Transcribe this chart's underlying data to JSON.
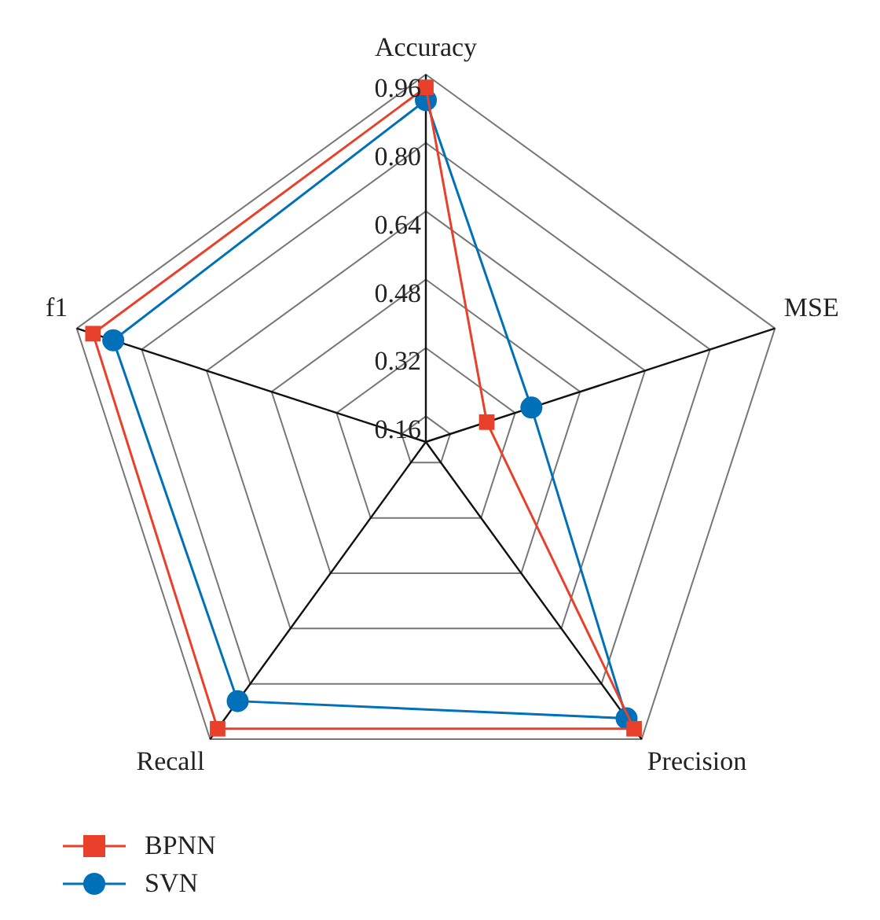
{
  "chart_data": {
    "type": "radar",
    "categories": [
      "Accuracy",
      "MSE",
      "Precision",
      "Recall",
      "f1"
    ],
    "series": [
      {
        "name": "BPNN",
        "color": "#e8402a",
        "marker": "square",
        "values": [
          0.93,
          0.25,
          0.93,
          0.93,
          0.92
        ]
      },
      {
        "name": "SVN",
        "color": "#0070b8",
        "marker": "circle",
        "values": [
          0.9,
          0.36,
          0.9,
          0.85,
          0.87
        ]
      }
    ],
    "ylim": [
      0.1,
      0.96
    ],
    "yticks": [
      0.16,
      0.32,
      0.48,
      0.64,
      {
        "value": 0.8,
        "label": "0.80"
      },
      0.96
    ],
    "grid": true,
    "legend": "bottom left"
  }
}
